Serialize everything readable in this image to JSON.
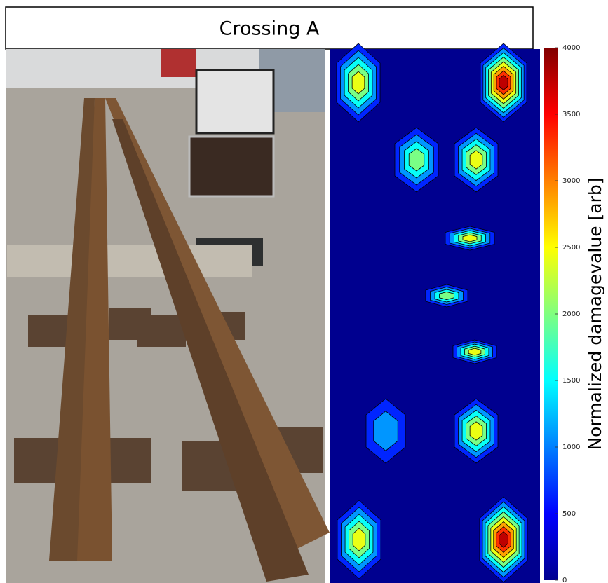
{
  "figure": {
    "title": "Crossing A",
    "colorbar": {
      "label": "Normalized damagevalue [arb]",
      "lim": [
        0,
        4000
      ],
      "ticks": [
        0,
        500,
        1000,
        1500,
        2000,
        2500,
        3000,
        3500,
        4000
      ]
    }
  }
}
